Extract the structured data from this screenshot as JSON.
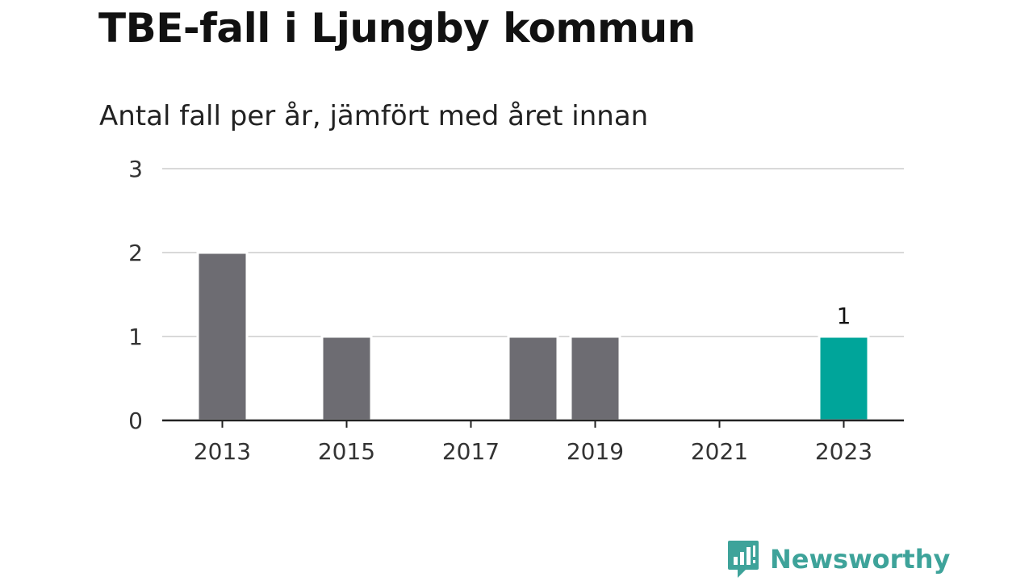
{
  "header": {
    "title": "TBE-fall i Ljungby kommun",
    "subtitle": "Antal fall per år, jämfört med året innan"
  },
  "brand": {
    "name": "Newsworthy",
    "icon": "newsworthy-logo-icon",
    "color": "#3ea39a"
  },
  "chart_data": {
    "type": "bar",
    "title": "TBE-fall i Ljungby kommun",
    "subtitle": "Antal fall per år, jämfört med året innan",
    "xlabel": "",
    "ylabel": "",
    "categories": [
      "2013",
      "2014",
      "2015",
      "2016",
      "2017",
      "2018",
      "2019",
      "2020",
      "2021",
      "2022",
      "2023"
    ],
    "values": [
      2,
      0,
      1,
      0,
      0,
      1,
      1,
      0,
      0,
      0,
      1
    ],
    "x_tick_labels": [
      "2013",
      "2015",
      "2017",
      "2019",
      "2021",
      "2023"
    ],
    "y_ticks": [
      0,
      1,
      2,
      3
    ],
    "ylim": [
      0,
      3
    ],
    "grid": true,
    "bar_color": "#6d6c72",
    "highlight_color": "#00a59a",
    "highlight_category": "2023",
    "data_labels": [
      {
        "category": "2023",
        "text": "1"
      }
    ]
  }
}
